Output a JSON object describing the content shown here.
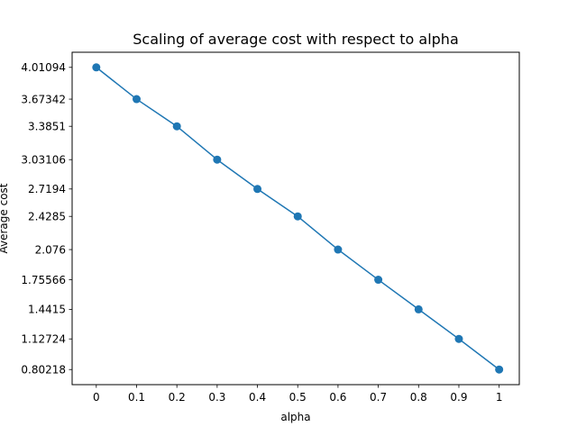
{
  "chart_data": {
    "type": "line",
    "title": "Scaling of average cost with respect to alpha",
    "xlabel": "alpha",
    "ylabel": "Average cost",
    "x": [
      0,
      0.1,
      0.2,
      0.3,
      0.4,
      0.5,
      0.6,
      0.7,
      0.8,
      0.9,
      1
    ],
    "x_tick_labels": [
      "0",
      "0.1",
      "0.2",
      "0.3",
      "0.4",
      "0.5",
      "0.6",
      "0.7",
      "0.8",
      "0.9",
      "1"
    ],
    "y": [
      4.01094,
      3.67342,
      3.3851,
      3.03106,
      2.7194,
      2.4285,
      2.076,
      1.75566,
      1.4415,
      1.12724,
      0.80218
    ],
    "y_tick_labels": [
      "0.80218",
      "1.12724",
      "1.4415",
      "1.75566",
      "2.076",
      "2.4285",
      "2.7194",
      "3.03106",
      "3.3851",
      "3.67342",
      "4.01094"
    ],
    "xlim": [
      -0.06,
      1.05
    ],
    "ylim": [
      0.6417,
      4.1714
    ],
    "grid": false,
    "legend": "none",
    "colors": {
      "series": "#1f77b4",
      "axes": "#000000"
    }
  }
}
